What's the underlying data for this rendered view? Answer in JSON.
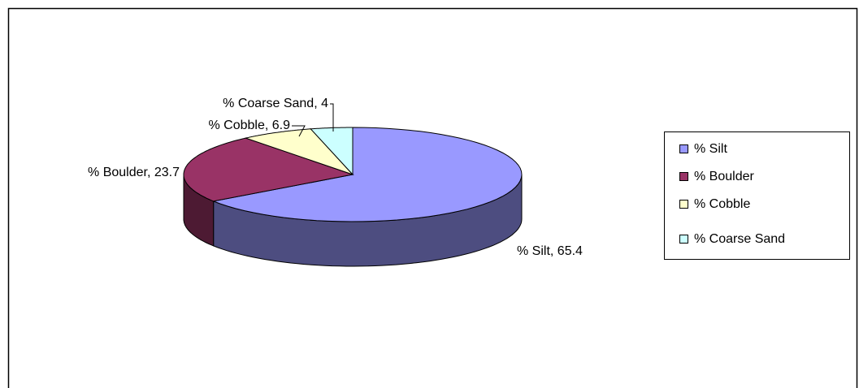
{
  "chart_data": {
    "type": "pie3d",
    "categories": [
      "% Silt",
      "% Boulder",
      "% Cobble",
      "% Coarse Sand"
    ],
    "values": [
      65.4,
      23.7,
      6.9,
      4
    ],
    "value_labels": [
      "% Silt, 65.4",
      "% Boulder, 23.7",
      "% Cobble, 6.9",
      "% Coarse Sand, 4"
    ],
    "colors": [
      "#9999ff",
      "#993366",
      "#ffffcc",
      "#ccffff"
    ],
    "legend": "right"
  }
}
